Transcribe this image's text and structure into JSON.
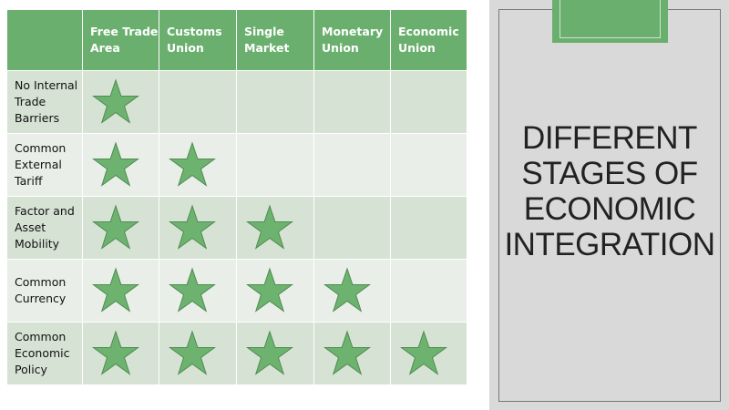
{
  "table": {
    "corner": "",
    "columns": [
      "Free Trade Area",
      "Customs Union",
      "Single Market",
      "Monetary Union",
      "Economic Union"
    ],
    "rows": [
      {
        "label": "No Internal Trade Barriers",
        "stars": [
          true,
          false,
          false,
          false,
          false
        ]
      },
      {
        "label": "Common External Tariff",
        "stars": [
          true,
          true,
          false,
          false,
          false
        ]
      },
      {
        "label": "Factor and Asset Mobility",
        "stars": [
          true,
          true,
          true,
          false,
          false
        ]
      },
      {
        "label": "Common Currency",
        "stars": [
          true,
          true,
          true,
          true,
          false
        ]
      },
      {
        "label": "Common Economic Policy",
        "stars": [
          true,
          true,
          true,
          true,
          true
        ]
      }
    ],
    "star_icon": "star-icon"
  },
  "title": "DIFFERENT STAGES OF ECONOMIC INTEGRATION",
  "colors": {
    "header_green": "#6aaf6e",
    "star_fill": "#6db36f",
    "row_dark": "#d6e3d4",
    "row_light": "#e9efe8",
    "panel_gray": "#d9d9d9"
  }
}
